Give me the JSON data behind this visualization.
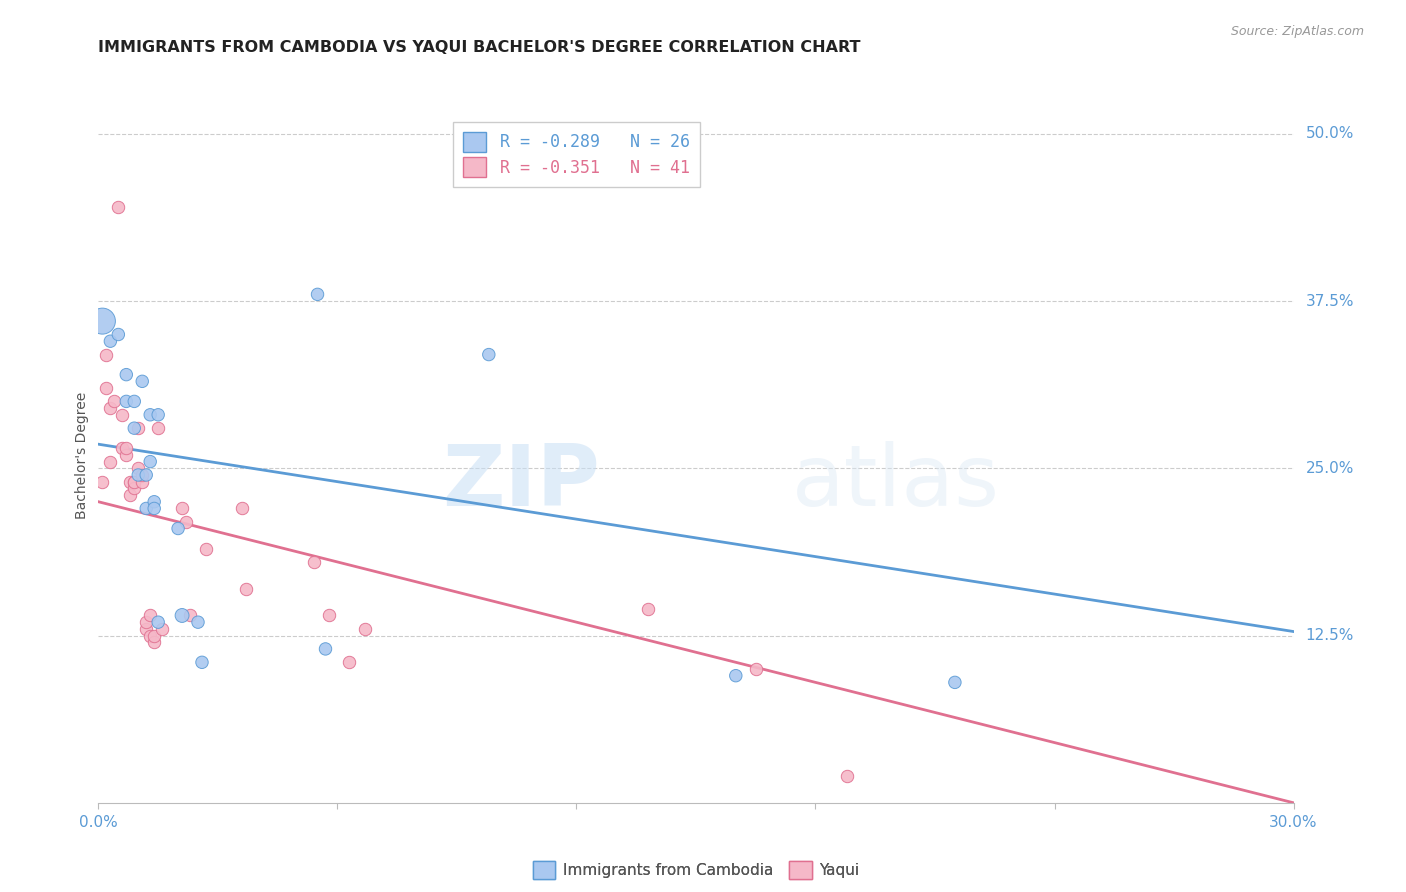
{
  "title": "IMMIGRANTS FROM CAMBODIA VS YAQUI BACHELOR'S DEGREE CORRELATION CHART",
  "source": "Source: ZipAtlas.com",
  "tick_color": "#5b9bd5",
  "ylabel": "Bachelor's Degree",
  "y_ticks": [
    0.0,
    0.125,
    0.25,
    0.375,
    0.5
  ],
  "y_tick_labels_right": [
    "12.5%",
    "25.0%",
    "37.5%",
    "50.0%"
  ],
  "legend_blue_label": "R = -0.289   N = 26",
  "legend_pink_label": "R = -0.351   N = 41",
  "legend_bottom_blue": "Immigrants from Cambodia",
  "legend_bottom_pink": "Yaqui",
  "blue_fill": "#aac8f0",
  "pink_fill": "#f5b8c8",
  "blue_edge": "#5b9bd5",
  "pink_edge": "#e07090",
  "blue_line_color": "#5b9bd5",
  "pink_line_color": "#e07090",
  "background_color": "#ffffff",
  "watermark_zip": "ZIP",
  "watermark_atlas": "atlas",
  "blue_scatter_x": [
    0.001,
    0.003,
    0.005,
    0.007,
    0.007,
    0.009,
    0.009,
    0.01,
    0.011,
    0.012,
    0.012,
    0.013,
    0.013,
    0.014,
    0.014,
    0.015,
    0.015,
    0.02,
    0.021,
    0.025,
    0.026,
    0.055,
    0.057,
    0.098,
    0.16,
    0.215
  ],
  "blue_scatter_y": [
    0.36,
    0.345,
    0.35,
    0.3,
    0.32,
    0.28,
    0.3,
    0.245,
    0.315,
    0.22,
    0.245,
    0.255,
    0.29,
    0.225,
    0.22,
    0.29,
    0.135,
    0.205,
    0.14,
    0.135,
    0.105,
    0.38,
    0.115,
    0.335,
    0.095,
    0.09
  ],
  "blue_scatter_sizes": [
    350,
    80,
    80,
    80,
    80,
    80,
    80,
    80,
    80,
    80,
    80,
    80,
    80,
    80,
    80,
    80,
    80,
    80,
    100,
    80,
    80,
    80,
    80,
    80,
    80,
    80
  ],
  "pink_scatter_x": [
    0.001,
    0.002,
    0.002,
    0.003,
    0.003,
    0.004,
    0.005,
    0.006,
    0.006,
    0.007,
    0.007,
    0.008,
    0.008,
    0.009,
    0.009,
    0.009,
    0.01,
    0.01,
    0.011,
    0.011,
    0.012,
    0.012,
    0.013,
    0.013,
    0.014,
    0.014,
    0.015,
    0.016,
    0.021,
    0.022,
    0.023,
    0.027,
    0.036,
    0.037,
    0.054,
    0.058,
    0.063,
    0.067,
    0.138,
    0.165,
    0.188
  ],
  "pink_scatter_y": [
    0.24,
    0.31,
    0.335,
    0.255,
    0.295,
    0.3,
    0.445,
    0.29,
    0.265,
    0.26,
    0.265,
    0.24,
    0.23,
    0.24,
    0.235,
    0.24,
    0.25,
    0.28,
    0.24,
    0.245,
    0.13,
    0.135,
    0.125,
    0.14,
    0.12,
    0.125,
    0.28,
    0.13,
    0.22,
    0.21,
    0.14,
    0.19,
    0.22,
    0.16,
    0.18,
    0.14,
    0.105,
    0.13,
    0.145,
    0.1,
    0.02
  ],
  "blue_line_x": [
    0.0,
    0.3
  ],
  "blue_line_y": [
    0.268,
    0.128
  ],
  "pink_line_x": [
    0.0,
    0.3
  ],
  "pink_line_y": [
    0.225,
    0.0
  ],
  "xlim": [
    0.0,
    0.3
  ],
  "ylim": [
    0.0,
    0.52
  ]
}
